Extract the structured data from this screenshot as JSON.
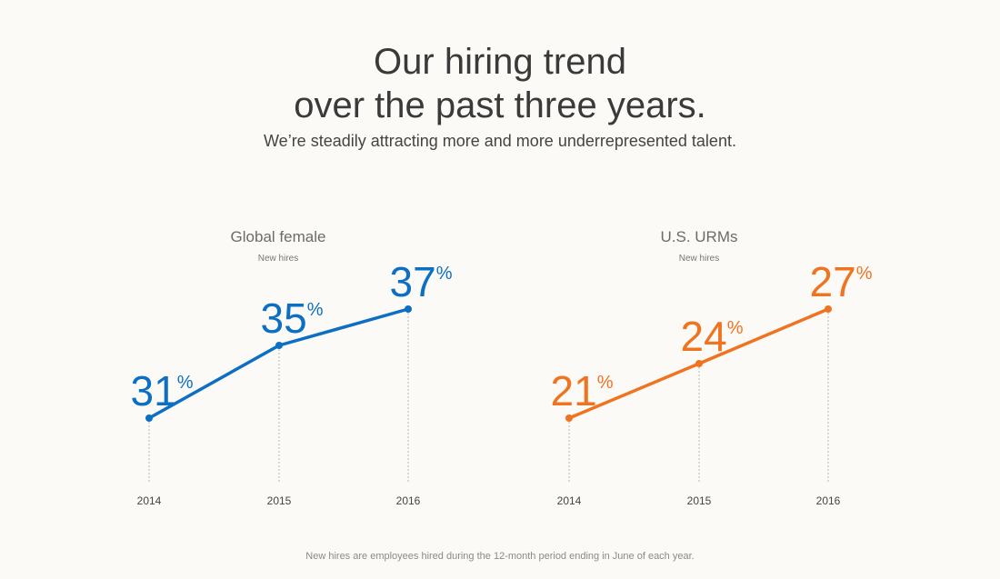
{
  "heading": {
    "line1": "Our hiring trend",
    "line2": "over the past three years.",
    "subtitle": "We’re steadily attracting more and more underrepresented talent."
  },
  "footnote": "New hires are employees hired during the 12-month period ending in June of each year.",
  "colors": {
    "female": "#0c6fc3",
    "urm": "#f07320",
    "background": "#fbfaf6"
  },
  "chart_data": [
    {
      "type": "line",
      "title": "Global female",
      "subtitle": "New hires",
      "x": [
        "2014",
        "2015",
        "2016"
      ],
      "values": [
        31,
        35,
        37
      ],
      "labels": [
        "31",
        "35",
        "37"
      ],
      "unit": "%",
      "ylim": [
        27,
        39
      ],
      "color": "#0c6fc3"
    },
    {
      "type": "line",
      "title": "U.S. URMs",
      "subtitle": "New hires",
      "x": [
        "2014",
        "2015",
        "2016"
      ],
      "values": [
        21,
        24,
        27
      ],
      "labels": [
        "21",
        "24",
        "27"
      ],
      "unit": "%",
      "ylim": [
        17,
        29
      ],
      "color": "#f07320"
    }
  ]
}
